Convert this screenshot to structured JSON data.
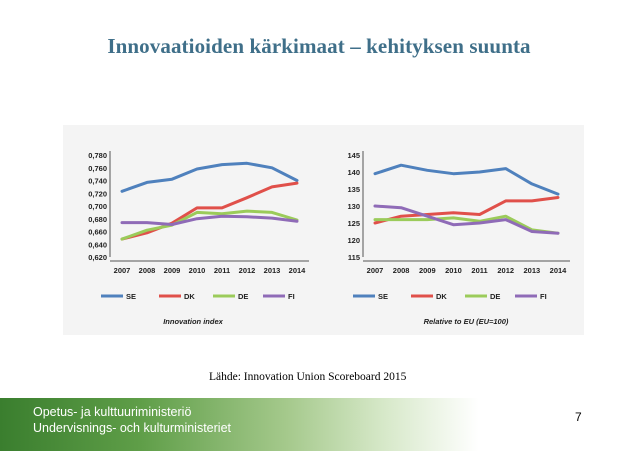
{
  "slide": {
    "title": "Innovaatioiden kärkimaat – kehityksen suunta",
    "source": "Lähde: Innovation Union Scoreboard 2015",
    "page_number": "7"
  },
  "footer": {
    "line1": "Opetus- ja kulttuuriministeriö",
    "line2": "Undervisnings- och kulturministeriet"
  },
  "colors": {
    "SE": "#4f81bd",
    "DK": "#e0504a",
    "DE": "#9bcb5a",
    "FI": "#8f6bb7",
    "title": "#3f6f89",
    "footer": "#3a7e2e"
  },
  "chart_data": [
    {
      "type": "line",
      "title": "Innovation index",
      "categories": [
        "2007",
        "2008",
        "2009",
        "2010",
        "2011",
        "2012",
        "2013",
        "2014"
      ],
      "ylim": [
        0.62,
        0.78
      ],
      "yticks": [
        "0,620",
        "0,640",
        "0,660",
        "0,680",
        "0,700",
        "0,720",
        "0,740",
        "0,760",
        "0,780"
      ],
      "grid": false,
      "legend_position": "bottom",
      "series": [
        {
          "name": "SE",
          "values": [
            0.723,
            0.737,
            0.742,
            0.758,
            0.765,
            0.767,
            0.76,
            0.74
          ]
        },
        {
          "name": "DK",
          "values": [
            0.648,
            0.658,
            0.673,
            0.697,
            0.697,
            0.713,
            0.73,
            0.736
          ]
        },
        {
          "name": "DE",
          "values": [
            0.648,
            0.662,
            0.67,
            0.69,
            0.688,
            0.692,
            0.69,
            0.678
          ]
        },
        {
          "name": "FI",
          "values": [
            0.674,
            0.674,
            0.671,
            0.68,
            0.684,
            0.683,
            0.681,
            0.676
          ]
        }
      ]
    },
    {
      "type": "line",
      "title": "Relative to EU (EU=100)",
      "categories": [
        "2007",
        "2008",
        "2009",
        "2010",
        "2011",
        "2012",
        "2013",
        "2014"
      ],
      "ylim": [
        115,
        145
      ],
      "yticks": [
        "115",
        "120",
        "125",
        "130",
        "135",
        "140",
        "145"
      ],
      "grid": false,
      "legend_position": "bottom",
      "series": [
        {
          "name": "SE",
          "values": [
            139.5,
            142,
            140.5,
            139.5,
            140,
            141,
            136.5,
            133.5
          ]
        },
        {
          "name": "DK",
          "values": [
            125,
            127,
            127.5,
            128,
            127.5,
            131.5,
            131.5,
            132.5
          ]
        },
        {
          "name": "DE",
          "values": [
            126,
            126,
            126,
            126.5,
            125.5,
            127,
            123,
            122
          ]
        },
        {
          "name": "FI",
          "values": [
            130,
            129.5,
            127,
            124.5,
            125,
            126,
            122.5,
            122
          ]
        }
      ]
    }
  ]
}
